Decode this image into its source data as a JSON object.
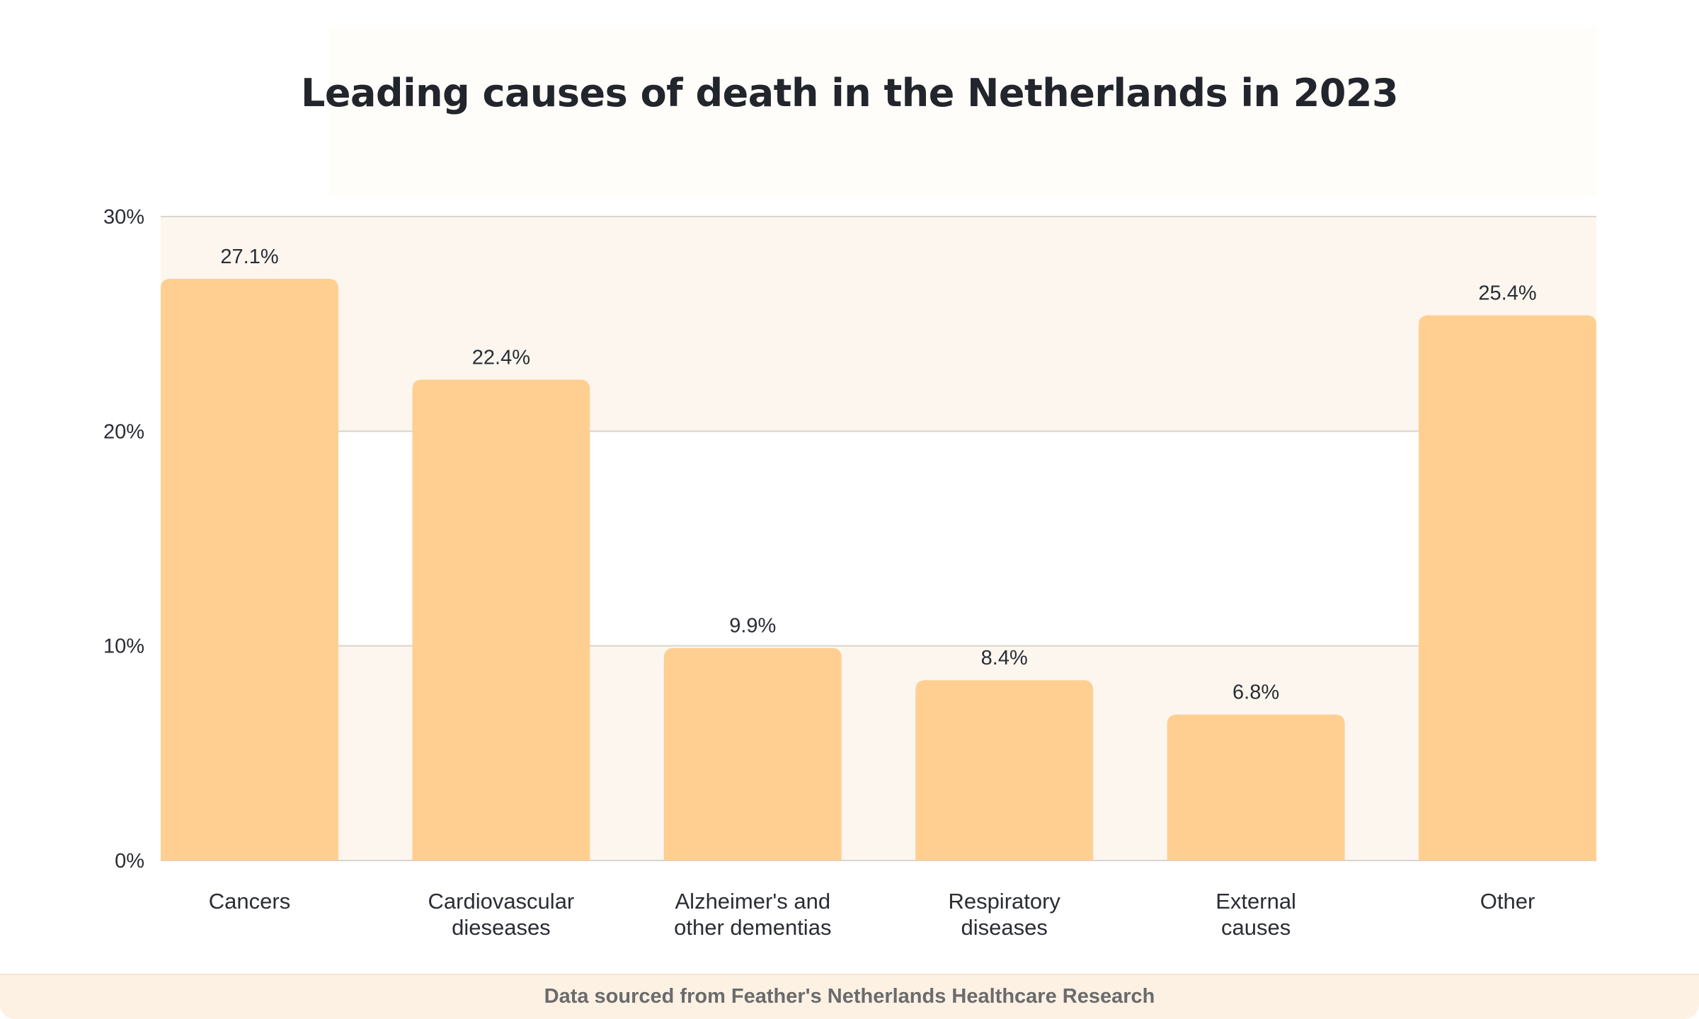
{
  "chart_data": {
    "type": "bar",
    "title": "Leading causes of death in the Netherlands in 2023",
    "categories": [
      "Cancers",
      "Cardiovascular\ndieseases",
      "Alzheimer's and\nother dementias",
      "Respiratory\ndiseases",
      "External\ncauses",
      "Other"
    ],
    "values": [
      27.1,
      22.4,
      9.9,
      8.4,
      6.8,
      25.4
    ],
    "value_labels": [
      "27.1%",
      "22.4%",
      "9.9%",
      "8.4%",
      "6.8%",
      "25.4%"
    ],
    "ylim": [
      0,
      30
    ],
    "yticks": [
      0,
      10,
      20,
      30
    ],
    "ytick_labels": [
      "0%",
      "10%",
      "20%",
      "30%"
    ],
    "xlabel": "",
    "ylabel": "",
    "grid": true,
    "legend": "none",
    "bar_color": "#ffcf92"
  },
  "footer": {
    "source": "Data sourced from Feather's Netherlands Healthcare Research"
  },
  "colors": {
    "title_text": "#22252b",
    "grid_line": "#d8d4cf",
    "band_fill": "#fcf6ef",
    "footer_fill": "#fdf1e4"
  }
}
